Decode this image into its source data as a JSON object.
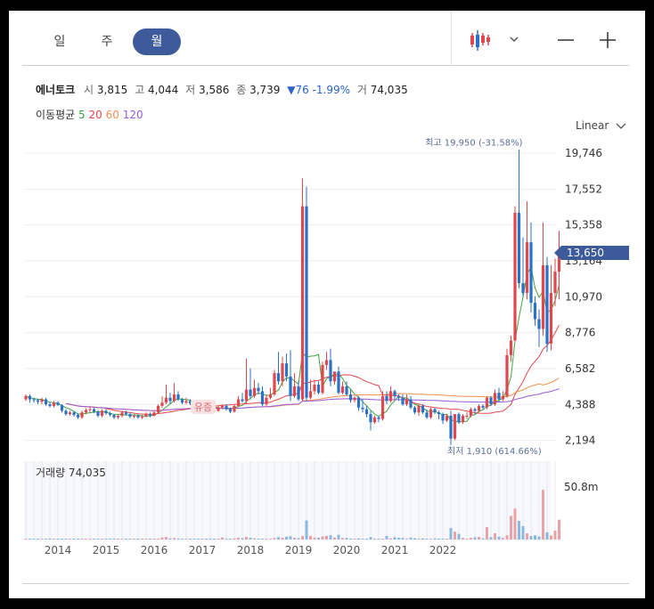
{
  "tabs": {
    "day": "일",
    "week": "주",
    "month": "월"
  },
  "stock": {
    "name": "에너토크",
    "open_label": "시",
    "open": "3,815",
    "high_label": "고",
    "high": "4,044",
    "low_label": "저",
    "low": "3,586",
    "close_label": "종",
    "close": "3,739",
    "change": "▼76 -1.99%",
    "volume_label": "거",
    "volume": "74,035"
  },
  "ma": {
    "label": "이동평균",
    "p5": "5",
    "p20": "20",
    "p60": "60",
    "p120": "120",
    "colors": {
      "p5": "#3fa33f",
      "p20": "#e0484d",
      "p60": "#f0914c",
      "p120": "#9b59d6"
    }
  },
  "scale_option": "Linear",
  "colors": {
    "up": "#e0484d",
    "down": "#2a72c8",
    "accent": "#3d5a9a"
  },
  "annotations": {
    "max_label": "최고 19,950 (-31.58%)",
    "min_label": "최저 1,910 (614.66%)",
    "event_label": "유증",
    "current_price": "13,650"
  },
  "chart_data": {
    "type": "candlestick",
    "y_ticks": [
      "19,746",
      "17,552",
      "15,358",
      "13,164",
      "10,970",
      "8,776",
      "6,582",
      "4,388",
      "2,194"
    ],
    "y_tick_values": [
      19746,
      17552,
      15358,
      13164,
      10970,
      8776,
      6582,
      4388,
      2194
    ],
    "ylim": [
      1900,
      20400
    ],
    "x_labels": [
      "2014",
      "2015",
      "2016",
      "2017",
      "2018",
      "2019",
      "2020",
      "2021",
      "2022"
    ],
    "x_label_index": [
      8,
      20,
      32,
      44,
      56,
      68,
      80,
      92,
      104
    ],
    "volume_label": "거래량 74,035",
    "volume_tick": "50.8m",
    "volume_max": 50.8,
    "close": [
      4900,
      4700,
      4650,
      4550,
      4700,
      4400,
      4300,
      4500,
      4350,
      4000,
      3800,
      3900,
      3750,
      3600,
      3900,
      4050,
      4100,
      3950,
      3700,
      4000,
      3850,
      3750,
      3600,
      3700,
      3900,
      3800,
      3650,
      3700,
      3600,
      3650,
      3800,
      3700,
      3900,
      4300,
      4500,
      4800,
      4600,
      5000,
      4700,
      4500,
      4600,
      4450,
      4400,
      4300,
      4500,
      4200,
      4050,
      4000,
      4200,
      4300,
      4100,
      3950,
      4300,
      4700,
      4600,
      5300,
      4900,
      5400,
      5200,
      4400,
      4800,
      5000,
      6300,
      5800,
      6900,
      6100,
      4900,
      5500,
      4700,
      16500,
      4800,
      5200,
      5600,
      5100,
      6800,
      7100,
      5800,
      6400,
      5100,
      5500,
      5000,
      4650,
      4800,
      4200,
      4100,
      3800,
      3300,
      3600,
      3500,
      4900,
      4600,
      5200,
      4900,
      4800,
      4400,
      4700,
      4200,
      3900,
      4300,
      3900,
      3600,
      4100,
      3900,
      3800,
      3400,
      3700,
      2300,
      3800,
      3300,
      3700,
      3700,
      4100,
      4000,
      4300,
      4200,
      4800,
      4400,
      5100,
      4700,
      4900,
      7400,
      8300,
      16100,
      11800,
      11200,
      14300,
      10600,
      9600,
      9000,
      12900,
      8100,
      11200,
      12500,
      13650
    ],
    "open": [
      4700,
      4900,
      4700,
      4650,
      4550,
      4700,
      4400,
      4300,
      4500,
      4350,
      4000,
      3800,
      3900,
      3750,
      3600,
      3900,
      4050,
      4100,
      3950,
      3700,
      4000,
      3850,
      3750,
      3600,
      3700,
      3900,
      3800,
      3650,
      3700,
      3600,
      3650,
      3800,
      3700,
      3900,
      4300,
      4500,
      4800,
      4600,
      5000,
      4700,
      4500,
      4600,
      4450,
      4400,
      4300,
      4500,
      4200,
      4050,
      4000,
      4200,
      4300,
      4100,
      3950,
      4300,
      4700,
      4600,
      5300,
      4900,
      5400,
      5200,
      4400,
      4800,
      5000,
      6300,
      5800,
      6900,
      6100,
      4900,
      5500,
      4700,
      16500,
      4800,
      5200,
      5600,
      5100,
      6800,
      7100,
      5800,
      6400,
      5100,
      5500,
      5000,
      4650,
      4800,
      4200,
      4100,
      3800,
      3300,
      3600,
      3500,
      4900,
      4600,
      5200,
      4900,
      4800,
      4400,
      4700,
      4200,
      3900,
      4300,
      3900,
      3600,
      4100,
      3900,
      3800,
      3400,
      3700,
      2300,
      3800,
      3300,
      3700,
      3700,
      4100,
      4000,
      4300,
      4200,
      4800,
      4400,
      5100,
      4700,
      4900,
      7400,
      8300,
      16100,
      11800,
      11200,
      14300,
      10600,
      9600,
      9000,
      12900,
      8100,
      11200,
      12500
    ],
    "high": [
      5000,
      5000,
      4800,
      4750,
      4800,
      4800,
      4500,
      4600,
      4600,
      4400,
      4100,
      4000,
      4000,
      3850,
      4000,
      4150,
      4250,
      4200,
      4050,
      4100,
      4100,
      3950,
      3800,
      3800,
      4000,
      4000,
      3900,
      3800,
      3800,
      3750,
      3900,
      3900,
      4000,
      4400,
      4900,
      5600,
      5100,
      5700,
      5200,
      4800,
      4800,
      4700,
      4600,
      4500,
      4600,
      4600,
      4300,
      4150,
      4300,
      4400,
      4400,
      4200,
      4400,
      4900,
      5100,
      7200,
      6600,
      5900,
      5700,
      5500,
      5000,
      5400,
      6500,
      7600,
      7300,
      7500,
      7700,
      6300,
      5800,
      18200,
      17700,
      5900,
      5900,
      5800,
      7000,
      7600,
      7800,
      6300,
      6700,
      5800,
      5800,
      5300,
      4900,
      4900,
      4700,
      4300,
      4000,
      3700,
      3700,
      5200,
      5200,
      5500,
      5300,
      5000,
      5000,
      5000,
      4900,
      4300,
      4400,
      4400,
      4100,
      4200,
      4200,
      4000,
      3900,
      3800,
      4000,
      3800,
      3900,
      3800,
      3900,
      4200,
      4200,
      4400,
      4400,
      4900,
      4900,
      5300,
      5400,
      5200,
      7800,
      8600,
      16500,
      19950,
      14600,
      16800,
      15500,
      11000,
      10200,
      15500,
      13400,
      12900,
      13300,
      15000
    ],
    "low": [
      4600,
      4500,
      4500,
      4400,
      4400,
      4300,
      4200,
      4200,
      4300,
      3900,
      3700,
      3700,
      3650,
      3500,
      3500,
      3800,
      3900,
      3850,
      3600,
      3600,
      3750,
      3650,
      3500,
      3500,
      3600,
      3700,
      3550,
      3550,
      3500,
      3500,
      3600,
      3600,
      3650,
      3800,
      4200,
      4400,
      4400,
      4500,
      4600,
      4400,
      4400,
      4350,
      4300,
      4200,
      4200,
      4100,
      3950,
      3900,
      3950,
      4100,
      4000,
      3850,
      3900,
      4250,
      4500,
      4400,
      4700,
      4800,
      5000,
      4300,
      4300,
      4700,
      4900,
      5600,
      5500,
      5800,
      4600,
      4800,
      4600,
      4600,
      4600,
      4700,
      5000,
      5000,
      5000,
      6500,
      5500,
      5600,
      5000,
      5000,
      4900,
      4500,
      4500,
      4000,
      3900,
      3600,
      2800,
      3200,
      3300,
      3400,
      4400,
      4500,
      4700,
      4600,
      4300,
      4300,
      4100,
      3800,
      3700,
      3800,
      3500,
      3500,
      3800,
      3500,
      3200,
      3300,
      1910,
      2200,
      3200,
      3200,
      3500,
      3600,
      3800,
      3900,
      4100,
      4100,
      4300,
      4300,
      4500,
      4600,
      4800,
      7000,
      8200,
      11500,
      11000,
      10800,
      10000,
      9200,
      7900,
      8600,
      7600,
      7700,
      10400,
      10800
    ],
    "volume": [
      0.8,
      0.5,
      0.6,
      0.4,
      0.5,
      0.3,
      0.4,
      0.3,
      0.3,
      0.3,
      0.4,
      0.2,
      0.3,
      0.2,
      0.3,
      0.3,
      0.2,
      0.2,
      0.2,
      0.3,
      0.2,
      0.2,
      0.2,
      0.2,
      0.3,
      0.2,
      0.2,
      0.2,
      0.2,
      0.2,
      0.3,
      0.2,
      0.3,
      0.4,
      2.0,
      2.5,
      1.2,
      1.5,
      1.0,
      0.6,
      0.6,
      0.5,
      0.4,
      0.4,
      0.5,
      0.4,
      0.3,
      0.3,
      0.3,
      2.0,
      0.6,
      0.4,
      1.2,
      1.8,
      1.5,
      2.6,
      1.8,
      1.2,
      0.9,
      0.7,
      0.9,
      0.8,
      1.6,
      2.4,
      1.8,
      2.8,
      3.2,
      1.8,
      1.4,
      3.5,
      18.8,
      3.6,
      2.0,
      1.8,
      3.0,
      3.6,
      4.2,
      2.1,
      4.7,
      1.6,
      1.6,
      1.0,
      0.8,
      1.2,
      0.7,
      0.6,
      2.4,
      1.0,
      0.6,
      0.7,
      3.6,
      1.2,
      2.3,
      1.8,
      1.6,
      0.9,
      1.9,
      1.3,
      0.8,
      1.2,
      0.8,
      0.8,
      1.2,
      0.8,
      1.0,
      0.8,
      11.2,
      7.8,
      5.6,
      1.6,
      0.8,
      1.8,
      2.3,
      2.6,
      1.2,
      12.2,
      2.4,
      6.2,
      2.8,
      1.6,
      4.3,
      23.2,
      30.5,
      18.4,
      13.3,
      6.1,
      3.5,
      4.2,
      3.0,
      48.9,
      7.2,
      4.1,
      8.8,
      19.5
    ]
  }
}
